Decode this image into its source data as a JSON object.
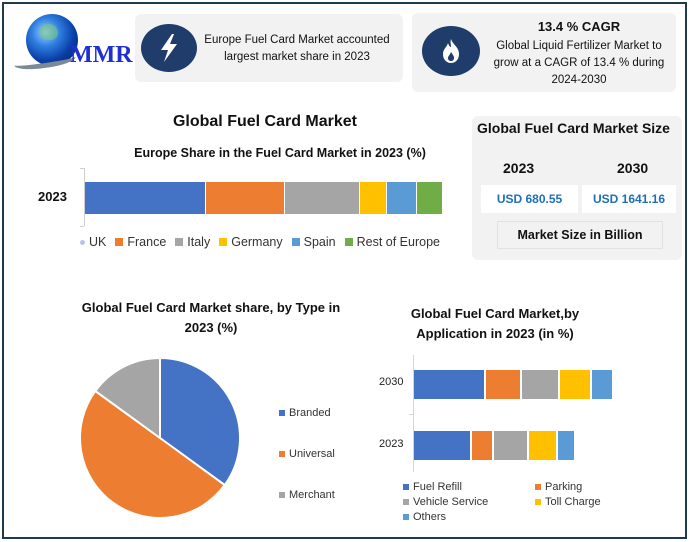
{
  "logo": {
    "text": "MMR"
  },
  "info_cards": [
    {
      "icon": "lightning-bolt-icon",
      "text": "Europe Fuel Card Market accounted largest market share in 2023"
    },
    {
      "icon": "flame-icon",
      "title": "13.4 % CAGR",
      "text": "Global Liquid Fertilizer Market to grow at a CAGR of 13.4 % during 2024-2030"
    }
  ],
  "market_size": {
    "title": "Global Fuel Card Market Size",
    "years": [
      "2023",
      "2030"
    ],
    "values": [
      "USD 680.55",
      "USD 1641.16"
    ],
    "unit": "Market Size in Billion",
    "value_color": "#1f6fb8"
  },
  "colors": {
    "blue": "#4472c4",
    "orange": "#ed7d31",
    "gray": "#a5a5a5",
    "yellow": "#ffc000",
    "light_blue": "#5b9bd5",
    "green": "#70ad47",
    "frame": "#1f3a4d",
    "icon_bg": "#1f3c6b",
    "card_bg": "#f2f2f2"
  },
  "chart_data": [
    {
      "type": "bar",
      "orientation": "horizontal",
      "stacked": true,
      "title": "Global Fuel Card Market",
      "subtitle": "Europe Share in the Fuel Card Market in 2023 (%)",
      "categories": [
        "2023"
      ],
      "series": [
        {
          "name": "UK",
          "values": [
            34
          ],
          "color": "#4472c4"
        },
        {
          "name": "France",
          "values": [
            22
          ],
          "color": "#ed7d31"
        },
        {
          "name": "Italy",
          "values": [
            21
          ],
          "color": "#a5a5a5"
        },
        {
          "name": "Germany",
          "values": [
            7.5
          ],
          "color": "#ffc000"
        },
        {
          "name": "Spain",
          "values": [
            8.5
          ],
          "color": "#5b9bd5"
        },
        {
          "name": "Rest of Europe",
          "values": [
            7
          ],
          "color": "#70ad47"
        }
      ],
      "legend_position": "bottom",
      "grid": false
    },
    {
      "type": "pie",
      "title": "Global Fuel Card Market share, by Type in 2023  (%)",
      "categories": [
        "Branded",
        "Universal",
        "Merchant"
      ],
      "values": [
        35,
        50,
        15
      ],
      "colors": [
        "#4472c4",
        "#ed7d31",
        "#a5a5a5"
      ],
      "legend_position": "right"
    },
    {
      "type": "bar",
      "orientation": "horizontal",
      "stacked": true,
      "title": "Global Fuel Card Market,by Application in 2023 (in %)",
      "categories": [
        "2030",
        "2023"
      ],
      "series": [
        {
          "name": "Fuel Refill",
          "values": [
            72,
            58
          ],
          "color": "#4472c4"
        },
        {
          "name": "Parking",
          "values": [
            36,
            22
          ],
          "color": "#ed7d31"
        },
        {
          "name": "Vehicle Service",
          "values": [
            38,
            35
          ],
          "color": "#a5a5a5"
        },
        {
          "name": "Toll Charge",
          "values": [
            32,
            29
          ],
          "color": "#ffc000"
        },
        {
          "name": "Others",
          "values": [
            22,
            18
          ],
          "color": "#5b9bd5"
        }
      ],
      "legend_position": "bottom",
      "grid": false
    }
  ]
}
